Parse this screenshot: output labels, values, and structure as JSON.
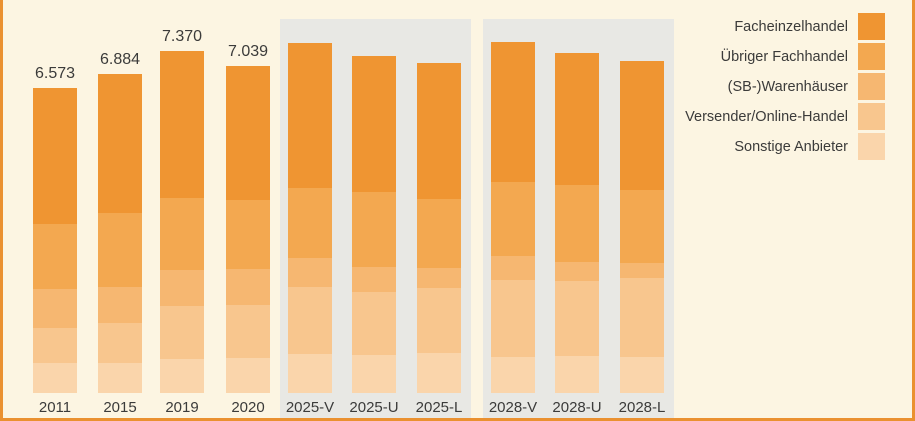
{
  "page": {
    "background_color": "#FCF5E2",
    "border_color": "#EA9130",
    "forecast_panel_color": "#E8E8E4",
    "text_color": "#3B3B3A"
  },
  "legend": {
    "items": [
      {
        "label": "Facheinzelhandel",
        "color": "#EF9532"
      },
      {
        "label": "Übriger Fachhandel",
        "color": "#F3A850"
      },
      {
        "label": "(SB-)Warenhäuser",
        "color": "#F6B771"
      },
      {
        "label": "Versender/Online-Handel",
        "color": "#F8C68E"
      },
      {
        "label": "Sonstige Anbieter",
        "color": "#FAD5AB"
      }
    ]
  },
  "chart_data": {
    "type": "bar",
    "subtype": "stacked-vertical",
    "grid": false,
    "value_axis_visible": false,
    "legend_position": "top-right",
    "series_names": [
      "Facheinzelhandel",
      "Übriger Fachhandel",
      "(SB-)Warenhäuser",
      "Versender/Online-Handel",
      "Sonstige Anbieter"
    ],
    "series_colors": [
      "#EF9532",
      "#F3A850",
      "#F6B771",
      "#F8C68E",
      "#FAD5AB"
    ],
    "stack_order": "first series on top, last series at bottom",
    "categories": [
      "2011",
      "2015",
      "2019",
      "2020",
      "2025-V",
      "2025-U",
      "2025-L",
      "2028-V",
      "2028-U",
      "2028-L"
    ],
    "forecast_categories": [
      "2025-V",
      "2025-U",
      "2025-L",
      "2028-V",
      "2028-U",
      "2028-L"
    ],
    "bars": [
      {
        "category": "2011",
        "total_label": "6.573",
        "total": 6573,
        "values": [
          2929,
          1410,
          824,
          759,
          651
        ],
        "forecast": false
      },
      {
        "category": "2015",
        "total_label": "6.884",
        "total": 6884,
        "values": [
          3010,
          1580,
          779,
          866,
          649
        ],
        "forecast": false
      },
      {
        "category": "2019",
        "total_label": "7.370",
        "total": 7370,
        "values": [
          3168,
          1552,
          776,
          1142,
          732
        ],
        "forecast": false
      },
      {
        "category": "2020",
        "total_label": "7.039",
        "total": 7039,
        "values": [
          2885,
          1485,
          775,
          1141,
          753
        ],
        "forecast": false
      },
      {
        "category": "2025-V",
        "total_label": "",
        "total": 7540,
        "values": [
          3130,
          1510,
          610,
          1450,
          840
        ],
        "forecast": true
      },
      {
        "category": "2025-U",
        "total_label": "",
        "total": 7260,
        "values": [
          2940,
          1600,
          540,
          1360,
          820
        ],
        "forecast": true
      },
      {
        "category": "2025-L",
        "total_label": "",
        "total": 7120,
        "values": [
          2940,
          1490,
          430,
          1400,
          860
        ],
        "forecast": true
      },
      {
        "category": "2028-V",
        "total_label": "",
        "total": 7560,
        "values": [
          3020,
          1580,
          520,
          1660,
          780
        ],
        "forecast": true
      },
      {
        "category": "2028-U",
        "total_label": "",
        "total": 7320,
        "values": [
          2850,
          1640,
          410,
          1620,
          800
        ],
        "forecast": true
      },
      {
        "category": "2028-L",
        "total_label": "",
        "total": 7160,
        "values": [
          2790,
          1560,
          320,
          1710,
          780
        ],
        "forecast": true
      }
    ]
  }
}
